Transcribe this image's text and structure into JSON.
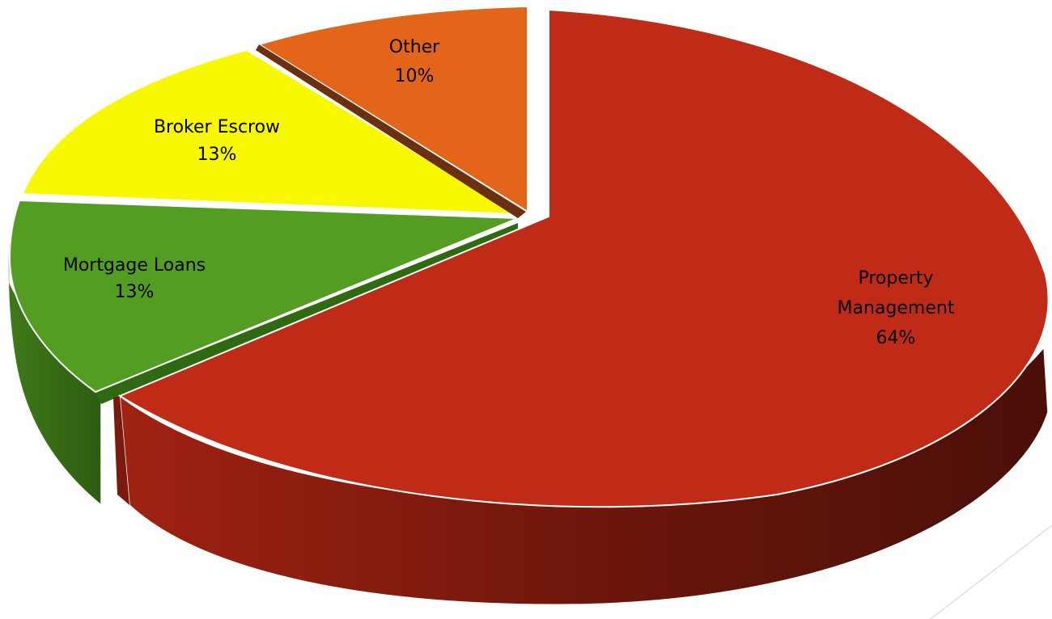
{
  "chart_data": {
    "type": "pie",
    "categories": [
      "Property Management",
      "Mortgage Loans",
      "Broker Escrow",
      "Other"
    ],
    "values": [
      64,
      13,
      13,
      10
    ],
    "labels": [
      [
        "Property",
        "Management",
        "64%"
      ],
      [
        "Mortgage Loans",
        "13%"
      ],
      [
        "Broker Escrow",
        "13%"
      ],
      [
        "Other",
        "10%"
      ]
    ],
    "colors": [
      "#c02b17",
      "#539e22",
      "#f8f800",
      "#e2651a"
    ],
    "exploded": [
      true,
      false,
      false,
      true
    ],
    "style": "3d",
    "legend": "none",
    "title": ""
  }
}
